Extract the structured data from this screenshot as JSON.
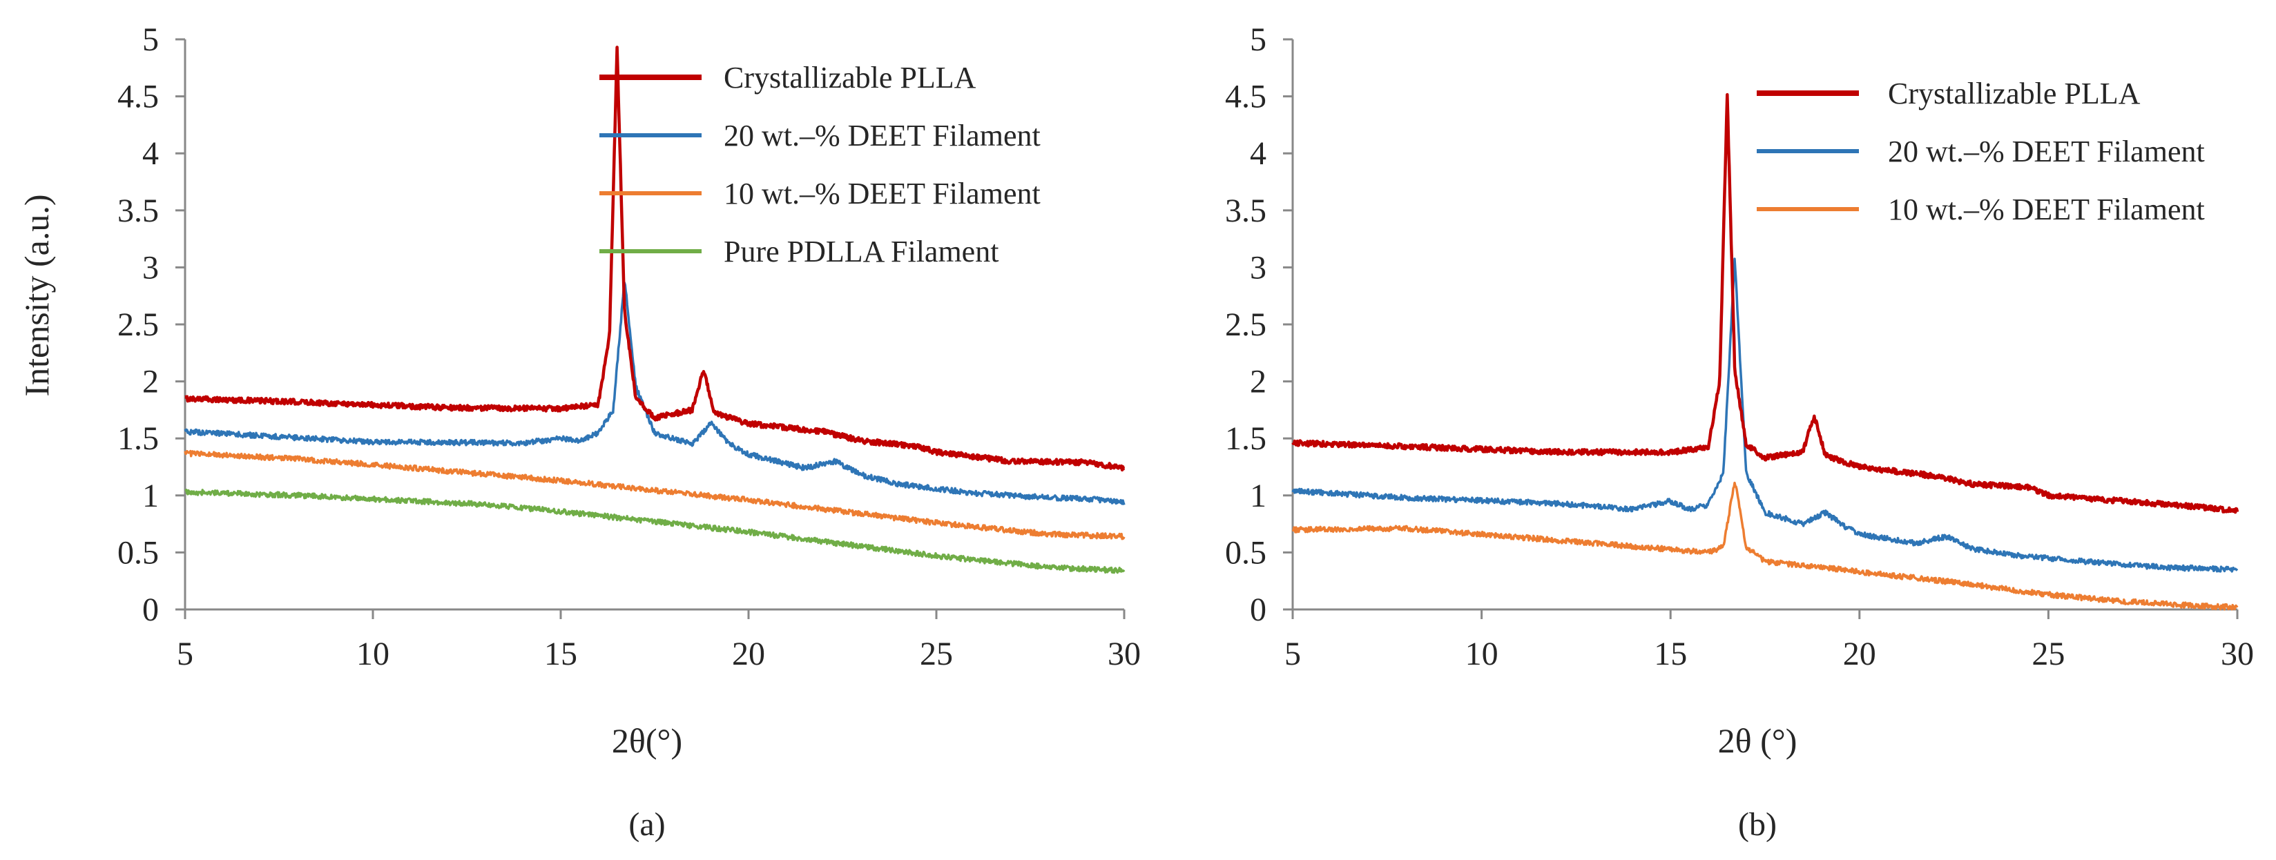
{
  "figure": {
    "panel_labels": [
      "(a)",
      "(b)"
    ],
    "y_axis_title": "Intensity (a.u.)",
    "x_axis_titles": [
      "2θ(°)",
      "2θ (°)"
    ]
  },
  "chart_data": [
    {
      "type": "line",
      "panel": "(a)",
      "title": "",
      "xlabel": "2θ(°)",
      "ylabel": "Intensity (a.u.)",
      "xlim": [
        5,
        30
      ],
      "ylim": [
        0,
        5
      ],
      "xticks": [
        "5",
        "10",
        "15",
        "20",
        "25",
        "30"
      ],
      "yticks": [
        "0",
        "0.5",
        "1",
        "1.5",
        "2",
        "2.5",
        "3",
        "3.5",
        "4",
        "4.5",
        "5"
      ],
      "grid": false,
      "legend_position": "top-right",
      "series": [
        {
          "name": "Crystallizable PLLA",
          "color": "#C00000",
          "x": [
            5,
            8,
            12,
            15,
            16,
            16.3,
            16.5,
            16.7,
            17.0,
            17.5,
            18.5,
            18.8,
            19.1,
            20,
            22,
            23,
            24.5,
            25,
            27,
            29,
            30
          ],
          "y": [
            1.85,
            1.82,
            1.77,
            1.76,
            1.8,
            2.4,
            4.92,
            2.6,
            1.85,
            1.68,
            1.75,
            2.1,
            1.72,
            1.63,
            1.56,
            1.48,
            1.43,
            1.38,
            1.3,
            1.29,
            1.24
          ]
        },
        {
          "name": "20 wt.–% DEET Filament",
          "color": "#2E75B6",
          "x": [
            5,
            10,
            14,
            15,
            15.5,
            16,
            16.4,
            16.7,
            17.0,
            17.5,
            18.5,
            19.0,
            19.5,
            20,
            21.5,
            22.3,
            23,
            24,
            26,
            28,
            29,
            30
          ],
          "y": [
            1.56,
            1.47,
            1.46,
            1.5,
            1.48,
            1.55,
            1.75,
            2.9,
            1.95,
            1.55,
            1.45,
            1.63,
            1.45,
            1.36,
            1.24,
            1.3,
            1.18,
            1.1,
            1.02,
            0.98,
            0.97,
            0.94
          ]
        },
        {
          "name": "10 wt.–% DEET Filament",
          "color": "#ED7D31",
          "x": [
            5,
            8,
            10,
            15,
            20,
            25,
            28,
            30
          ],
          "y": [
            1.37,
            1.32,
            1.27,
            1.13,
            0.96,
            0.76,
            0.66,
            0.64
          ]
        },
        {
          "name": "Pure PDLLA Filament",
          "color": "#70AD47",
          "x": [
            5,
            8,
            10,
            13,
            15,
            20,
            25,
            28,
            30
          ],
          "y": [
            1.03,
            1.0,
            0.97,
            0.92,
            0.86,
            0.68,
            0.47,
            0.37,
            0.34
          ]
        }
      ]
    },
    {
      "type": "line",
      "panel": "(b)",
      "title": "",
      "xlabel": "2θ (°)",
      "ylabel": "",
      "xlim": [
        5,
        30
      ],
      "ylim": [
        0,
        5
      ],
      "xticks": [
        "5",
        "10",
        "15",
        "20",
        "25",
        "30"
      ],
      "yticks": [
        "0",
        "0.5",
        "1",
        "1.5",
        "2",
        "2.5",
        "3",
        "3.5",
        "4",
        "4.5",
        "5"
      ],
      "grid": false,
      "legend_position": "top-right",
      "series": [
        {
          "name": "Crystallizable PLLA",
          "color": "#C00000",
          "x": [
            5,
            8,
            12,
            15,
            16,
            16.3,
            16.5,
            16.7,
            17.0,
            17.5,
            18.5,
            18.8,
            19.1,
            20,
            22,
            23,
            24.5,
            25,
            27,
            29,
            30
          ],
          "y": [
            1.46,
            1.43,
            1.38,
            1.38,
            1.42,
            2.0,
            4.52,
            2.1,
            1.45,
            1.33,
            1.38,
            1.7,
            1.35,
            1.25,
            1.17,
            1.1,
            1.07,
            1.0,
            0.95,
            0.9,
            0.86
          ]
        },
        {
          "name": "20 wt.–% DEET Filament",
          "color": "#2E75B6",
          "x": [
            5,
            8,
            12,
            14,
            15,
            15.5,
            16,
            16.4,
            16.7,
            17.0,
            17.5,
            18.5,
            19.1,
            19.6,
            20,
            21.5,
            22.3,
            23,
            24,
            26,
            28,
            30
          ],
          "y": [
            1.04,
            0.98,
            0.93,
            0.88,
            0.95,
            0.88,
            0.92,
            1.2,
            3.08,
            1.2,
            0.85,
            0.75,
            0.85,
            0.73,
            0.66,
            0.58,
            0.64,
            0.53,
            0.48,
            0.42,
            0.37,
            0.35
          ]
        },
        {
          "name": "10 wt.–% DEET Filament",
          "color": "#ED7D31",
          "x": [
            5,
            8,
            10,
            13,
            16,
            16.4,
            16.7,
            17.0,
            17.5,
            19,
            20,
            22.2,
            22.5,
            25,
            27,
            29,
            30
          ],
          "y": [
            0.7,
            0.71,
            0.66,
            0.58,
            0.5,
            0.55,
            1.13,
            0.55,
            0.42,
            0.37,
            0.33,
            0.25,
            0.24,
            0.13,
            0.07,
            0.03,
            0.02
          ]
        }
      ]
    }
  ]
}
